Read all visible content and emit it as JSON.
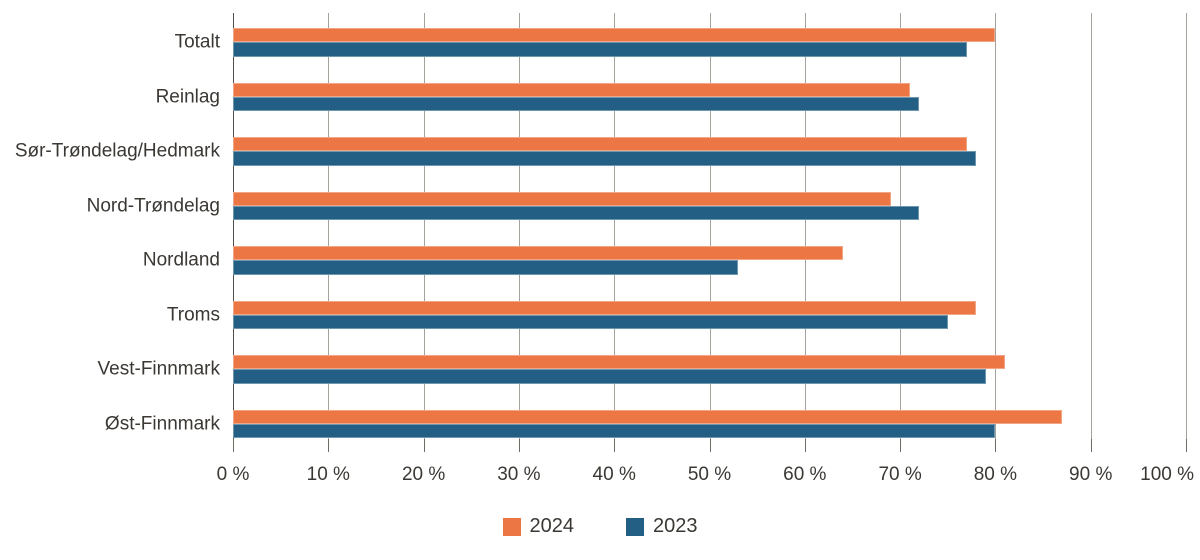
{
  "chart_data": {
    "type": "bar",
    "orientation": "horizontal",
    "categories": [
      "Totalt",
      "Reinlag",
      "Sør-Trøndelag/Hedmark",
      "Nord-Trøndelag",
      "Nordland",
      "Troms",
      "Vest-Finnmark",
      "Øst-Finnmark"
    ],
    "series": [
      {
        "name": "2024",
        "color": "#ec7644",
        "values": [
          80,
          71,
          77,
          69,
          64,
          78,
          81,
          87
        ]
      },
      {
        "name": "2023",
        "color": "#235f85",
        "values": [
          77,
          72,
          78,
          72,
          53,
          75,
          79,
          80
        ]
      }
    ],
    "value_unit": "%",
    "xlim": [
      0,
      100
    ],
    "x_tick_step": 10,
    "x_tick_labels": [
      "0 %",
      "10 %",
      "20 %",
      "30 %",
      "40 %",
      "50 %",
      "60 %",
      "70 %",
      "80 %",
      "90 %",
      "100 %"
    ],
    "grid": true,
    "legend_position": "bottom"
  },
  "colors": {
    "background": "#ffffff",
    "series_2024": "#ec7644",
    "series_2023": "#235f85",
    "gridline": "#a5a29b",
    "axis_line": "#524f4a",
    "tick": "#6e6b65",
    "text": "#3b3834"
  }
}
